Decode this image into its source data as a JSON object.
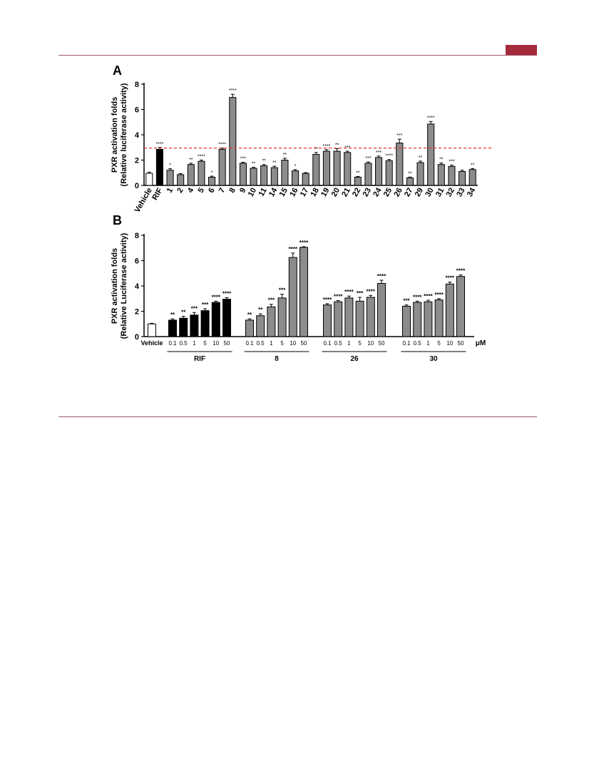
{
  "page": {
    "header_accent_color": "#a52a3c",
    "rule_color": "#a0566a"
  },
  "chart_data": [
    {
      "type": "bar",
      "panel_label": "A",
      "ylabel_line1": "PXR activation folds",
      "ylabel_line2": "(Relative luciferase activity)",
      "ylim": [
        0,
        8
      ],
      "yticks": [
        "0",
        "2",
        "4",
        "6",
        "8"
      ],
      "threshold": {
        "value": 2.95,
        "color": "#e8352e",
        "style": "dashed"
      },
      "categories": [
        "Vehicle",
        "RIF",
        "1",
        "2",
        "4",
        "5",
        "6",
        "7",
        "8",
        "9",
        "10",
        "11",
        "14",
        "15",
        "16",
        "17",
        "18",
        "19",
        "20",
        "21",
        "22",
        "23",
        "24",
        "25",
        "26",
        "27",
        "29",
        "30",
        "31",
        "32",
        "33",
        "34"
      ],
      "values": [
        0.95,
        2.85,
        1.2,
        0.85,
        1.65,
        1.9,
        0.65,
        2.85,
        6.95,
        1.75,
        1.35,
        1.55,
        1.4,
        2.0,
        1.15,
        0.95,
        2.45,
        2.7,
        2.7,
        2.6,
        0.65,
        1.75,
        2.2,
        1.95,
        3.35,
        0.6,
        1.8,
        4.85,
        1.65,
        1.5,
        1.1,
        1.25
      ],
      "errors": [
        0.1,
        0.15,
        0.12,
        0.08,
        0.1,
        0.1,
        0.08,
        0.1,
        0.25,
        0.08,
        0.08,
        0.1,
        0.12,
        0.15,
        0.1,
        0.06,
        0.15,
        0.12,
        0.2,
        0.1,
        0.06,
        0.1,
        0.12,
        0.1,
        0.3,
        0.06,
        0.12,
        0.2,
        0.12,
        0.1,
        0.1,
        0.08
      ],
      "significance": [
        "",
        "****",
        "*",
        "",
        "**",
        "****",
        "*",
        "****",
        "****",
        "***",
        "**",
        "**",
        "**",
        "**",
        "*",
        "",
        "**",
        "****",
        "**",
        "***",
        "**",
        "***",
        "***",
        "****",
        "***",
        "**",
        "**",
        "****",
        "**",
        "***",
        "",
        "**"
      ],
      "bar_fill": [
        "white",
        "black",
        "gray",
        "gray",
        "gray",
        "gray",
        "gray",
        "gray",
        "gray",
        "gray",
        "gray",
        "gray",
        "gray",
        "gray",
        "gray",
        "gray",
        "gray",
        "gray",
        "gray",
        "gray",
        "gray",
        "gray",
        "gray",
        "gray",
        "gray",
        "gray",
        "gray",
        "gray",
        "gray",
        "gray",
        "gray",
        "gray"
      ],
      "colors": {
        "gray": "#8c8c8c",
        "black": "#000000",
        "white": "#ffffff"
      }
    },
    {
      "type": "bar",
      "panel_label": "B",
      "ylabel_line1": "PXR activation folds",
      "ylabel_line2": "(Relative Luciferase activity)",
      "ylim": [
        0,
        8
      ],
      "yticks": [
        "0",
        "2",
        "4",
        "6",
        "8"
      ],
      "unit": "μM",
      "vehicle": {
        "label": "Vehicle",
        "value": 1.0,
        "error": 0.05
      },
      "concentrations": [
        "0.1",
        "0.5",
        "1",
        "5",
        "10",
        "50"
      ],
      "groups": [
        {
          "name": "RIF",
          "fill": "black",
          "values": [
            1.3,
            1.45,
            1.7,
            2.05,
            2.7,
            2.95
          ],
          "errors": [
            0.1,
            0.15,
            0.2,
            0.15,
            0.1,
            0.12
          ],
          "significance": [
            "**",
            "**",
            "***",
            "***",
            "****",
            "****"
          ]
        },
        {
          "name": "8",
          "fill": "gray",
          "values": [
            1.3,
            1.65,
            2.35,
            3.05,
            6.25,
            7.05
          ],
          "errors": [
            0.1,
            0.15,
            0.2,
            0.3,
            0.35,
            0.05
          ],
          "significance": [
            "**",
            "**",
            "***",
            "***",
            "****",
            "****"
          ]
        },
        {
          "name": "26",
          "fill": "gray",
          "values": [
            2.5,
            2.75,
            3.05,
            2.8,
            3.1,
            4.2
          ],
          "errors": [
            0.1,
            0.1,
            0.15,
            0.3,
            0.15,
            0.25
          ],
          "significance": [
            "****",
            "****",
            "****",
            "***",
            "****",
            "****"
          ]
        },
        {
          "name": "30",
          "fill": "gray",
          "values": [
            2.4,
            2.7,
            2.75,
            2.9,
            4.15,
            4.75
          ],
          "errors": [
            0.1,
            0.1,
            0.12,
            0.1,
            0.15,
            0.12
          ],
          "significance": [
            "***",
            "****",
            "****",
            "****",
            "****",
            "****"
          ]
        }
      ],
      "colors": {
        "gray": "#8c8c8c",
        "black": "#000000",
        "white": "#ffffff"
      }
    }
  ]
}
